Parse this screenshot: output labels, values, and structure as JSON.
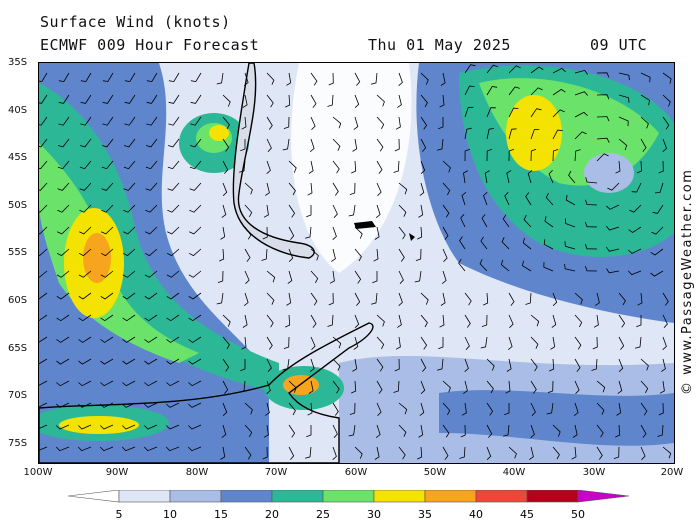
{
  "header": {
    "title": "Surface Wind (knots)",
    "model": "ECMWF 009 Hour Forecast",
    "date": "Thu 01 May 2025",
    "time": "09 UTC"
  },
  "credit": "© www.PassageWeather.com",
  "latitudes": [
    "35S",
    "40S",
    "45S",
    "50S",
    "55S",
    "60S",
    "65S",
    "70S",
    "75S"
  ],
  "longitudes": [
    "100W",
    "90W",
    "80W",
    "70W",
    "60W",
    "50W",
    "40W",
    "30W",
    "20W"
  ],
  "legend": {
    "values": [
      "5",
      "10",
      "15",
      "20",
      "25",
      "30",
      "35",
      "40",
      "45",
      "50"
    ],
    "colors": [
      "#ffffff",
      "#dfe6f6",
      "#a9bde6",
      "#5f86cc",
      "#2cb897",
      "#6be36b",
      "#f4e300",
      "#f7a41e",
      "#ee4638",
      "#b4001a",
      "#c800c8"
    ]
  }
}
